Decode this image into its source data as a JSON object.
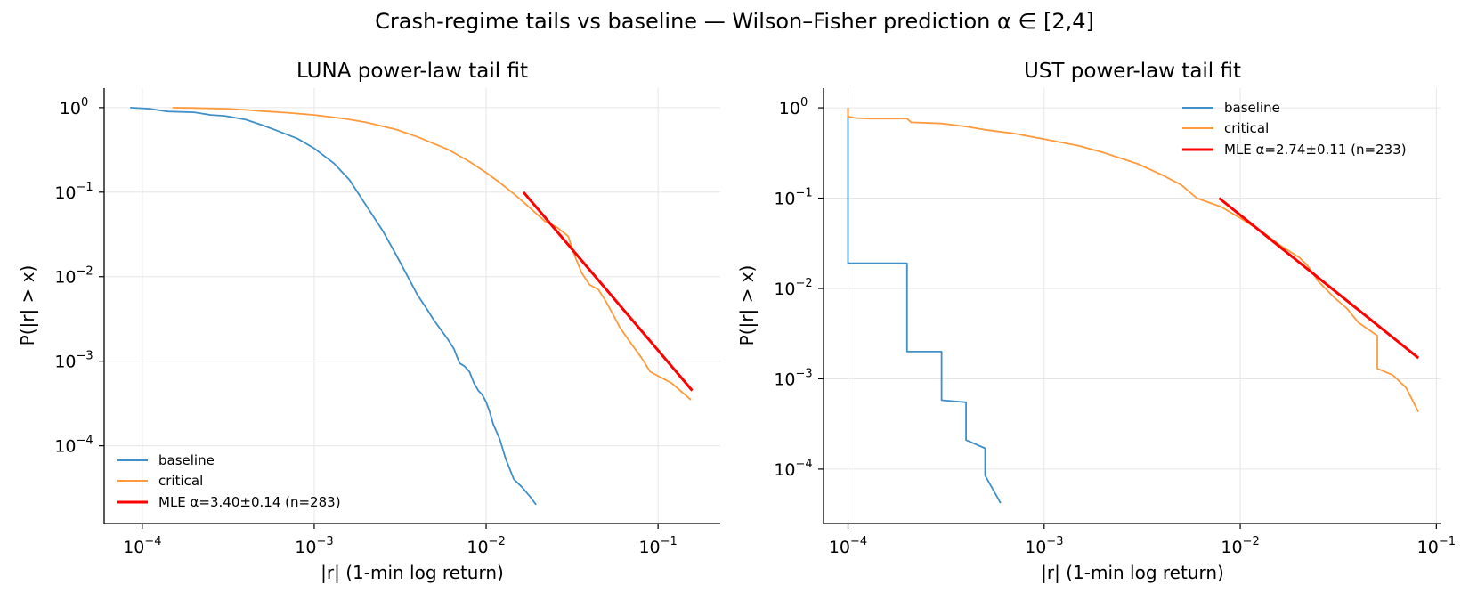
{
  "suptitle": "Crash-regime tails vs baseline — Wilson–Fisher prediction α ∈ [2,4]",
  "colors": {
    "baseline": "#3f8fc8",
    "critical": "#ff9a3c",
    "fit": "#ff0000",
    "grid": "#e6e6e6"
  },
  "chart_data": [
    {
      "type": "line",
      "scale": "log-log",
      "title": "LUNA  power-law tail fit",
      "xlabel": "|r|  (1-min log return)",
      "ylabel": "P(|r| > x)",
      "xlim": [
        6e-05,
        0.23
      ],
      "ylim": [
        1.2e-05,
        1.7
      ],
      "xticks": [
        {
          "v": 0.0001,
          "base": "10",
          "exp": "−4"
        },
        {
          "v": 0.001,
          "base": "10",
          "exp": "−3"
        },
        {
          "v": 0.01,
          "base": "10",
          "exp": "−2"
        },
        {
          "v": 0.1,
          "base": "10",
          "exp": "−1"
        }
      ],
      "yticks": [
        {
          "v": 1,
          "base": "10",
          "exp": "0"
        },
        {
          "v": 0.1,
          "base": "10",
          "exp": "−1"
        },
        {
          "v": 0.01,
          "base": "10",
          "exp": "−2"
        },
        {
          "v": 0.001,
          "base": "10",
          "exp": "−3"
        },
        {
          "v": 0.0001,
          "base": "10",
          "exp": "−4"
        }
      ],
      "legend_position": "lower-left",
      "series": [
        {
          "name": "baseline",
          "key": "baseline",
          "x": [
            8.5e-05,
            0.00011,
            0.00014,
            0.0002,
            0.00025,
            0.0003,
            0.0004,
            0.0005,
            0.0006,
            0.0008,
            0.001,
            0.0013,
            0.0016,
            0.002,
            0.0025,
            0.003,
            0.0035,
            0.004,
            0.0045,
            0.005,
            0.0055,
            0.006,
            0.0065,
            0.0068,
            0.007,
            0.0075,
            0.008,
            0.0085,
            0.009,
            0.0095,
            0.01,
            0.0105,
            0.011,
            0.012,
            0.013,
            0.0145,
            0.016,
            0.018,
            0.0195
          ],
          "y": [
            1.0,
            0.97,
            0.9,
            0.88,
            0.82,
            0.8,
            0.72,
            0.62,
            0.54,
            0.43,
            0.33,
            0.22,
            0.14,
            0.07,
            0.035,
            0.018,
            0.01,
            0.006,
            0.0042,
            0.003,
            0.0023,
            0.0018,
            0.0014,
            0.0011,
            0.00095,
            0.00087,
            0.00075,
            0.00055,
            0.00045,
            0.0004,
            0.00033,
            0.00025,
            0.00018,
            0.00012,
            7e-05,
            4e-05,
            3.3e-05,
            2.5e-05,
            2e-05
          ]
        },
        {
          "name": "critical",
          "key": "critical",
          "x": [
            0.00015,
            0.0002,
            0.0003,
            0.0004,
            0.0005,
            0.0007,
            0.001,
            0.0015,
            0.002,
            0.003,
            0.004,
            0.006,
            0.008,
            0.01,
            0.012,
            0.015,
            0.018,
            0.022,
            0.026,
            0.03,
            0.033,
            0.036,
            0.04,
            0.045,
            0.05,
            0.055,
            0.06,
            0.07,
            0.08,
            0.09,
            0.12,
            0.155
          ],
          "y": [
            1.0,
            0.99,
            0.97,
            0.94,
            0.91,
            0.87,
            0.82,
            0.74,
            0.67,
            0.55,
            0.45,
            0.32,
            0.23,
            0.17,
            0.13,
            0.09,
            0.065,
            0.045,
            0.038,
            0.03,
            0.017,
            0.011,
            0.008,
            0.007,
            0.005,
            0.0035,
            0.0025,
            0.0016,
            0.0011,
            0.00075,
            0.00055,
            0.00035
          ]
        },
        {
          "name": "MLE α=3.40±0.14 (n=283)",
          "key": "fit",
          "x": [
            0.0165,
            0.158
          ],
          "y": [
            0.1,
            0.00045
          ]
        }
      ]
    },
    {
      "type": "line",
      "scale": "log-log",
      "title": "UST  power-law tail fit",
      "xlabel": "|r|  (1-min log return)",
      "ylabel": "P(|r| > x)",
      "xlim": [
        7.5e-05,
        0.105
      ],
      "ylim": [
        2.5e-05,
        1.65
      ],
      "xticks": [
        {
          "v": 0.0001,
          "base": "10",
          "exp": "−4"
        },
        {
          "v": 0.001,
          "base": "10",
          "exp": "−3"
        },
        {
          "v": 0.01,
          "base": "10",
          "exp": "−2"
        },
        {
          "v": 0.1,
          "base": "10",
          "exp": "−1"
        }
      ],
      "yticks": [
        {
          "v": 1,
          "base": "10",
          "exp": "0"
        },
        {
          "v": 0.1,
          "base": "10",
          "exp": "−1"
        },
        {
          "v": 0.01,
          "base": "10",
          "exp": "−2"
        },
        {
          "v": 0.001,
          "base": "10",
          "exp": "−3"
        },
        {
          "v": 0.0001,
          "base": "10",
          "exp": "−4"
        }
      ],
      "legend_position": "upper-right",
      "series": [
        {
          "name": "baseline",
          "key": "baseline",
          "x": [
            0.0001,
            0.0001,
            0.0002,
            0.0002,
            0.0003,
            0.0003,
            0.0004,
            0.0004,
            0.0005,
            0.0005,
            0.0006
          ],
          "y": [
            1.0,
            0.019,
            0.019,
            0.002,
            0.002,
            0.00058,
            0.00055,
            0.00021,
            0.00017,
            8.5e-05,
            4.2e-05
          ]
        },
        {
          "name": "critical",
          "key": "critical",
          "x": [
            0.0001,
            0.0001,
            0.00011,
            0.00013,
            0.0002,
            0.00021,
            0.0003,
            0.0004,
            0.0005,
            0.0007,
            0.001,
            0.0015,
            0.002,
            0.003,
            0.004,
            0.005,
            0.006,
            0.008,
            0.01,
            0.013,
            0.016,
            0.02,
            0.022,
            0.025,
            0.03,
            0.035,
            0.04,
            0.05,
            0.05,
            0.06,
            0.07,
            0.081
          ],
          "y": [
            1.0,
            0.8,
            0.77,
            0.76,
            0.76,
            0.69,
            0.67,
            0.62,
            0.57,
            0.52,
            0.45,
            0.38,
            0.32,
            0.24,
            0.18,
            0.14,
            0.1,
            0.08,
            0.06,
            0.042,
            0.03,
            0.022,
            0.018,
            0.012,
            0.008,
            0.006,
            0.0042,
            0.003,
            0.0013,
            0.0011,
            0.0008,
            0.00043
          ]
        },
        {
          "name": "MLE α=2.74±0.11 (n=233)",
          "key": "fit",
          "x": [
            0.0078,
            0.081
          ],
          "y": [
            0.1,
            0.0017
          ]
        }
      ]
    }
  ]
}
